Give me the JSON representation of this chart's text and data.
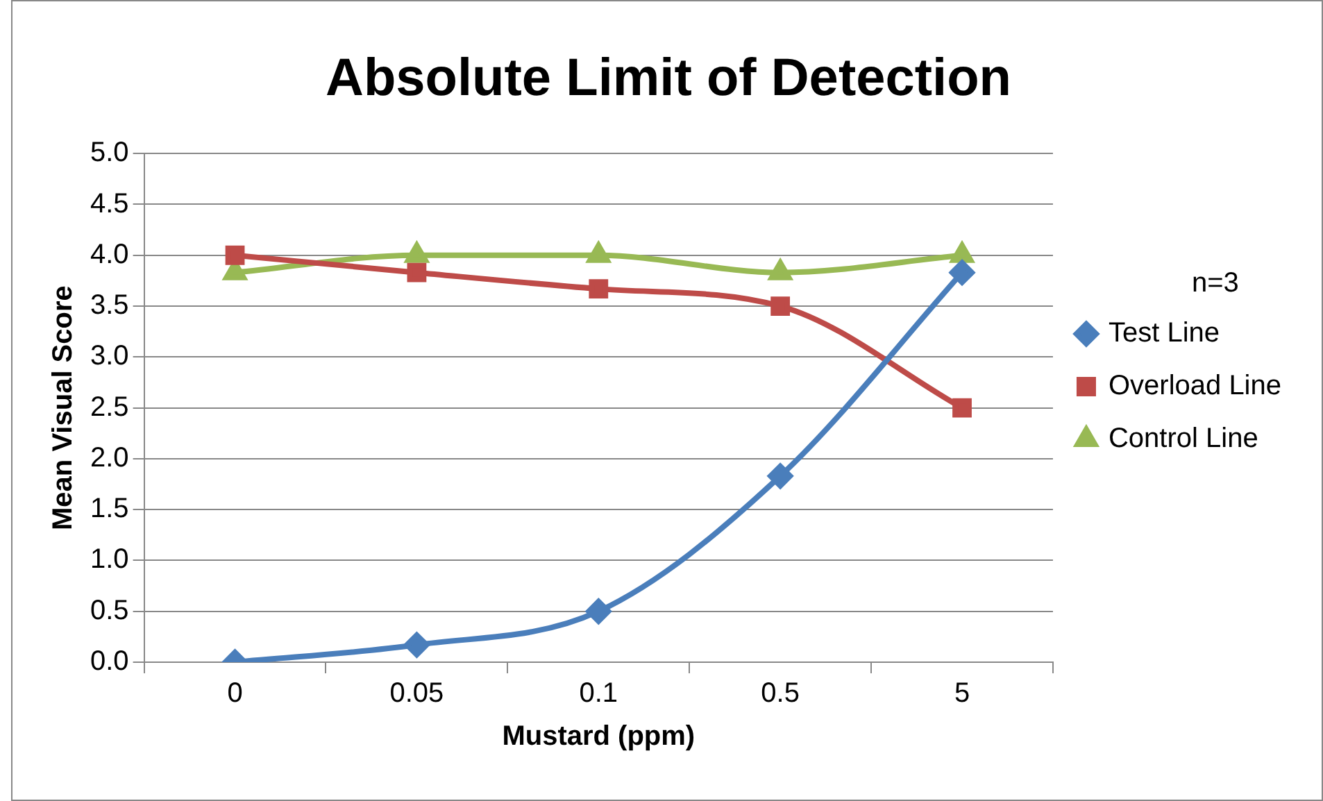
{
  "chart_data": {
    "type": "line",
    "title": "Absolute Limit of Detection",
    "xlabel": "Mustard (ppm)",
    "ylabel": "Mean Visual Score",
    "categories": [
      "0",
      "0.05",
      "0.1",
      "0.5",
      "5"
    ],
    "series": [
      {
        "name": "Test Line",
        "color": "#4a7ebb",
        "marker": "diamond",
        "values": [
          0,
          0.17,
          0.5,
          1.83,
          3.83
        ]
      },
      {
        "name": "Overload Line",
        "color": "#be4b48",
        "marker": "square",
        "values": [
          4,
          3.83,
          3.67,
          3.5,
          2.5
        ]
      },
      {
        "name": "Control Line",
        "color": "#98b954",
        "marker": "triangle",
        "values": [
          3.83,
          4,
          4,
          3.83,
          4
        ]
      }
    ],
    "ylim": [
      0,
      5
    ],
    "yticks": [
      {
        "value": 0,
        "label": "0.0"
      },
      {
        "value": 0.5,
        "label": "0.5"
      },
      {
        "value": 1,
        "label": "1.0"
      },
      {
        "value": 1.5,
        "label": "1.5"
      },
      {
        "value": 2,
        "label": "2.0"
      },
      {
        "value": 2.5,
        "label": "2.5"
      },
      {
        "value": 3,
        "label": "3.0"
      },
      {
        "value": 3.5,
        "label": "3.5"
      },
      {
        "value": 4,
        "label": "4.0"
      },
      {
        "value": 4.5,
        "label": "4.5"
      },
      {
        "value": 5,
        "label": "5.0"
      }
    ],
    "grid": "y",
    "legend": "right",
    "annotations": [
      "n=3"
    ]
  }
}
